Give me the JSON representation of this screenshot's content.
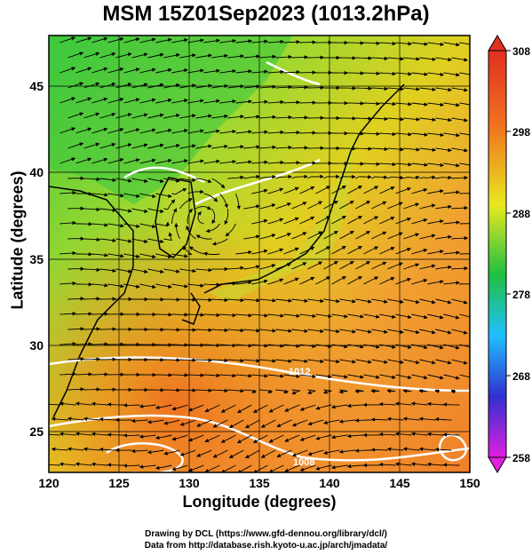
{
  "title": "MSM 15Z01Sep2023 (1013.2hPa)",
  "xaxis": {
    "label": "Longitude (degrees)",
    "ticks": [
      "120",
      "125",
      "130",
      "135",
      "140",
      "145",
      "150"
    ],
    "range": [
      120,
      150
    ]
  },
  "yaxis": {
    "label": "Latitude  (degrees)",
    "ticks": [
      "25",
      "30",
      "35",
      "40",
      "45"
    ],
    "range": [
      22.5,
      47.8
    ]
  },
  "colorbar": {
    "ticks": [
      "308",
      "298",
      "288",
      "278",
      "268",
      "258"
    ],
    "range": [
      258,
      308
    ],
    "colors": [
      "#e020e0",
      "#3030d0",
      "#20c0ff",
      "#20c040",
      "#e8e820",
      "#f07020",
      "#e03020"
    ]
  },
  "contour_labels": [
    "1012",
    "1008"
  ],
  "footer": {
    "line1": "Drawing by DCL (https://www.gfd-dennou.org/library/dcl/)",
    "line2": "Data from http://database.rish.kyoto-u.ac.jp/arch/jmadata/"
  }
}
